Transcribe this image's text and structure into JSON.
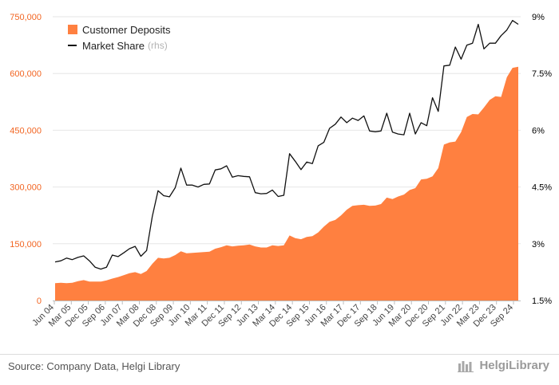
{
  "chart_data": {
    "type": "area+line",
    "x_tick_labels": [
      "Jun 04",
      "Mar 05",
      "Dec 05",
      "Sep 06",
      "Jun 07",
      "Mar 08",
      "Dec 08",
      "Sep 09",
      "Jun 10",
      "Mar 11",
      "Dec 11",
      "Sep 12",
      "Jun 13",
      "Mar 14",
      "Dec 14",
      "Sep 15",
      "Jun 16",
      "Mar 17",
      "Dec 17",
      "Sep 18",
      "Jun 19",
      "Mar 20",
      "Dec 20",
      "Sep 21",
      "Jun 22",
      "Mar 23",
      "Dec 23",
      "Sep 24"
    ],
    "y_left": {
      "ticks": [
        "0",
        "150,000",
        "300,000",
        "450,000",
        "600,000",
        "750,000"
      ],
      "lim": [
        0,
        750000
      ],
      "color": "#f26522"
    },
    "y_right": {
      "ticks": [
        "1.5%",
        "3%",
        "4.5%",
        "6%",
        "7.5%",
        "9%"
      ],
      "lim": [
        1.5,
        9
      ],
      "color": "#000000"
    },
    "grid": true,
    "legend_position": "top-left",
    "series": [
      {
        "name": "Customer Deposits",
        "kind": "area",
        "axis": "left",
        "color": "#ff8040",
        "values": [
          46000,
          47000,
          46000,
          47000,
          51000,
          54000,
          50000,
          50000,
          50000,
          53000,
          58000,
          62000,
          67000,
          72000,
          75000,
          70000,
          78000,
          97000,
          113000,
          111000,
          113000,
          120000,
          130000,
          125000,
          126000,
          127000,
          128000,
          129000,
          137000,
          141000,
          146000,
          143000,
          145000,
          146000,
          148000,
          143000,
          140000,
          140000,
          146000,
          144000,
          146000,
          172000,
          165000,
          162000,
          168000,
          170000,
          180000,
          195000,
          208000,
          213000,
          225000,
          240000,
          250000,
          252000,
          253000,
          250000,
          251000,
          255000,
          272000,
          268000,
          275000,
          280000,
          292000,
          297000,
          320000,
          322000,
          328000,
          350000,
          412000,
          418000,
          420000,
          445000,
          485000,
          493000,
          492000,
          510000,
          530000,
          540000,
          538000,
          590000,
          615000,
          618000
        ]
      },
      {
        "name": "Market Share",
        "kind": "line",
        "axis": "right",
        "color": "#111111",
        "values": [
          2.52,
          2.55,
          2.62,
          2.58,
          2.64,
          2.68,
          2.55,
          2.38,
          2.33,
          2.38,
          2.7,
          2.66,
          2.76,
          2.87,
          2.93,
          2.67,
          2.82,
          3.72,
          4.4,
          4.27,
          4.24,
          4.48,
          5.0,
          4.55,
          4.55,
          4.5,
          4.57,
          4.58,
          4.95,
          4.98,
          5.06,
          4.76,
          4.8,
          4.78,
          4.77,
          4.35,
          4.32,
          4.33,
          4.42,
          4.25,
          4.28,
          5.38,
          5.18,
          4.96,
          5.16,
          5.12,
          5.59,
          5.68,
          6.05,
          6.16,
          6.35,
          6.2,
          6.32,
          6.26,
          6.38,
          5.98,
          5.96,
          5.98,
          6.45,
          5.95,
          5.9,
          5.88,
          6.45,
          5.9,
          6.2,
          6.12,
          6.86,
          6.5,
          7.7,
          7.72,
          8.2,
          7.88,
          8.25,
          8.3,
          8.8,
          8.15,
          8.3,
          8.3,
          8.5,
          8.65,
          8.9,
          8.8
        ]
      }
    ]
  },
  "legend": {
    "items": [
      {
        "label": "Customer Deposits",
        "note": "",
        "color": "#ff8040"
      },
      {
        "label": "Market Share",
        "note": "(rhs)",
        "color": "#111111"
      }
    ]
  },
  "footer": {
    "source": "Source: Company Data, Helgi Library",
    "brand": "HelgiLibrary"
  }
}
